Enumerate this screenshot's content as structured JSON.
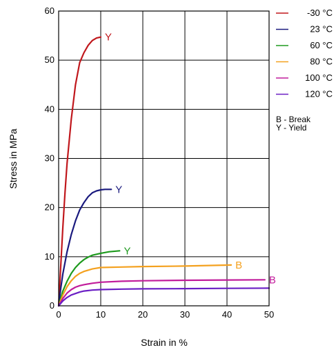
{
  "chart_data": {
    "type": "line",
    "title": "",
    "xlabel": "Strain in %",
    "ylabel": "Stress in MPa",
    "xlim": [
      0,
      50
    ],
    "ylim": [
      0,
      60
    ],
    "x_ticks": [
      0,
      10,
      20,
      30,
      40,
      50
    ],
    "y_ticks": [
      0,
      10,
      20,
      30,
      40,
      50,
      60
    ],
    "grid": true,
    "legend_position": "right",
    "legend_note": [
      "B - Break",
      "Y - Yield"
    ],
    "series": [
      {
        "name": "-30 °C",
        "color": "#c0171c",
        "end_marker": "Y",
        "x": [
          0,
          0.5,
          1,
          1.5,
          2,
          3,
          4,
          5,
          6,
          7,
          8,
          9,
          10
        ],
        "y": [
          0,
          8,
          16,
          23,
          29,
          38,
          45,
          49.5,
          51.5,
          53,
          54,
          54.5,
          54.7
        ]
      },
      {
        "name": "23 °C",
        "color": "#1a1a7e",
        "end_marker": "Y",
        "x": [
          0,
          0.5,
          1,
          2,
          3,
          4,
          5,
          6,
          7,
          8,
          9,
          10,
          11,
          12.5
        ],
        "y": [
          0,
          3.5,
          6.5,
          11,
          14.5,
          17.3,
          19.5,
          21,
          22.2,
          23,
          23.4,
          23.6,
          23.7,
          23.7
        ]
      },
      {
        "name": "60 °C",
        "color": "#1e9a1e",
        "end_marker": "Y",
        "x": [
          0,
          1,
          2,
          3,
          4,
          5,
          6,
          7,
          8,
          10,
          12,
          14.5
        ],
        "y": [
          0,
          3,
          5,
          6.6,
          7.8,
          8.7,
          9.4,
          9.9,
          10.3,
          10.7,
          11,
          11.2
        ]
      },
      {
        "name": "80 °C",
        "color": "#f4a11f",
        "end_marker": "B",
        "x": [
          0,
          1,
          2,
          3,
          4,
          5,
          6,
          8,
          10,
          15,
          20,
          30,
          41
        ],
        "y": [
          0,
          2.2,
          3.9,
          5.1,
          6,
          6.6,
          7,
          7.5,
          7.8,
          7.9,
          8,
          8.1,
          8.3
        ]
      },
      {
        "name": "100 °C",
        "color": "#c11c9b",
        "end_marker": "B",
        "x": [
          0,
          1,
          2,
          3,
          4,
          5,
          6,
          8,
          10,
          15,
          20,
          30,
          40,
          49
        ],
        "y": [
          0,
          1.5,
          2.6,
          3.3,
          3.8,
          4.1,
          4.3,
          4.6,
          4.8,
          5,
          5.1,
          5.2,
          5.25,
          5.3
        ]
      },
      {
        "name": "120 °C",
        "color": "#6a1ec4",
        "end_marker": "",
        "x": [
          0,
          1,
          2,
          3,
          4,
          5,
          6,
          8,
          10,
          15,
          20,
          30,
          40,
          50
        ],
        "y": [
          0,
          1,
          1.7,
          2.2,
          2.5,
          2.8,
          3,
          3.2,
          3.3,
          3.4,
          3.45,
          3.5,
          3.55,
          3.6
        ]
      }
    ]
  }
}
